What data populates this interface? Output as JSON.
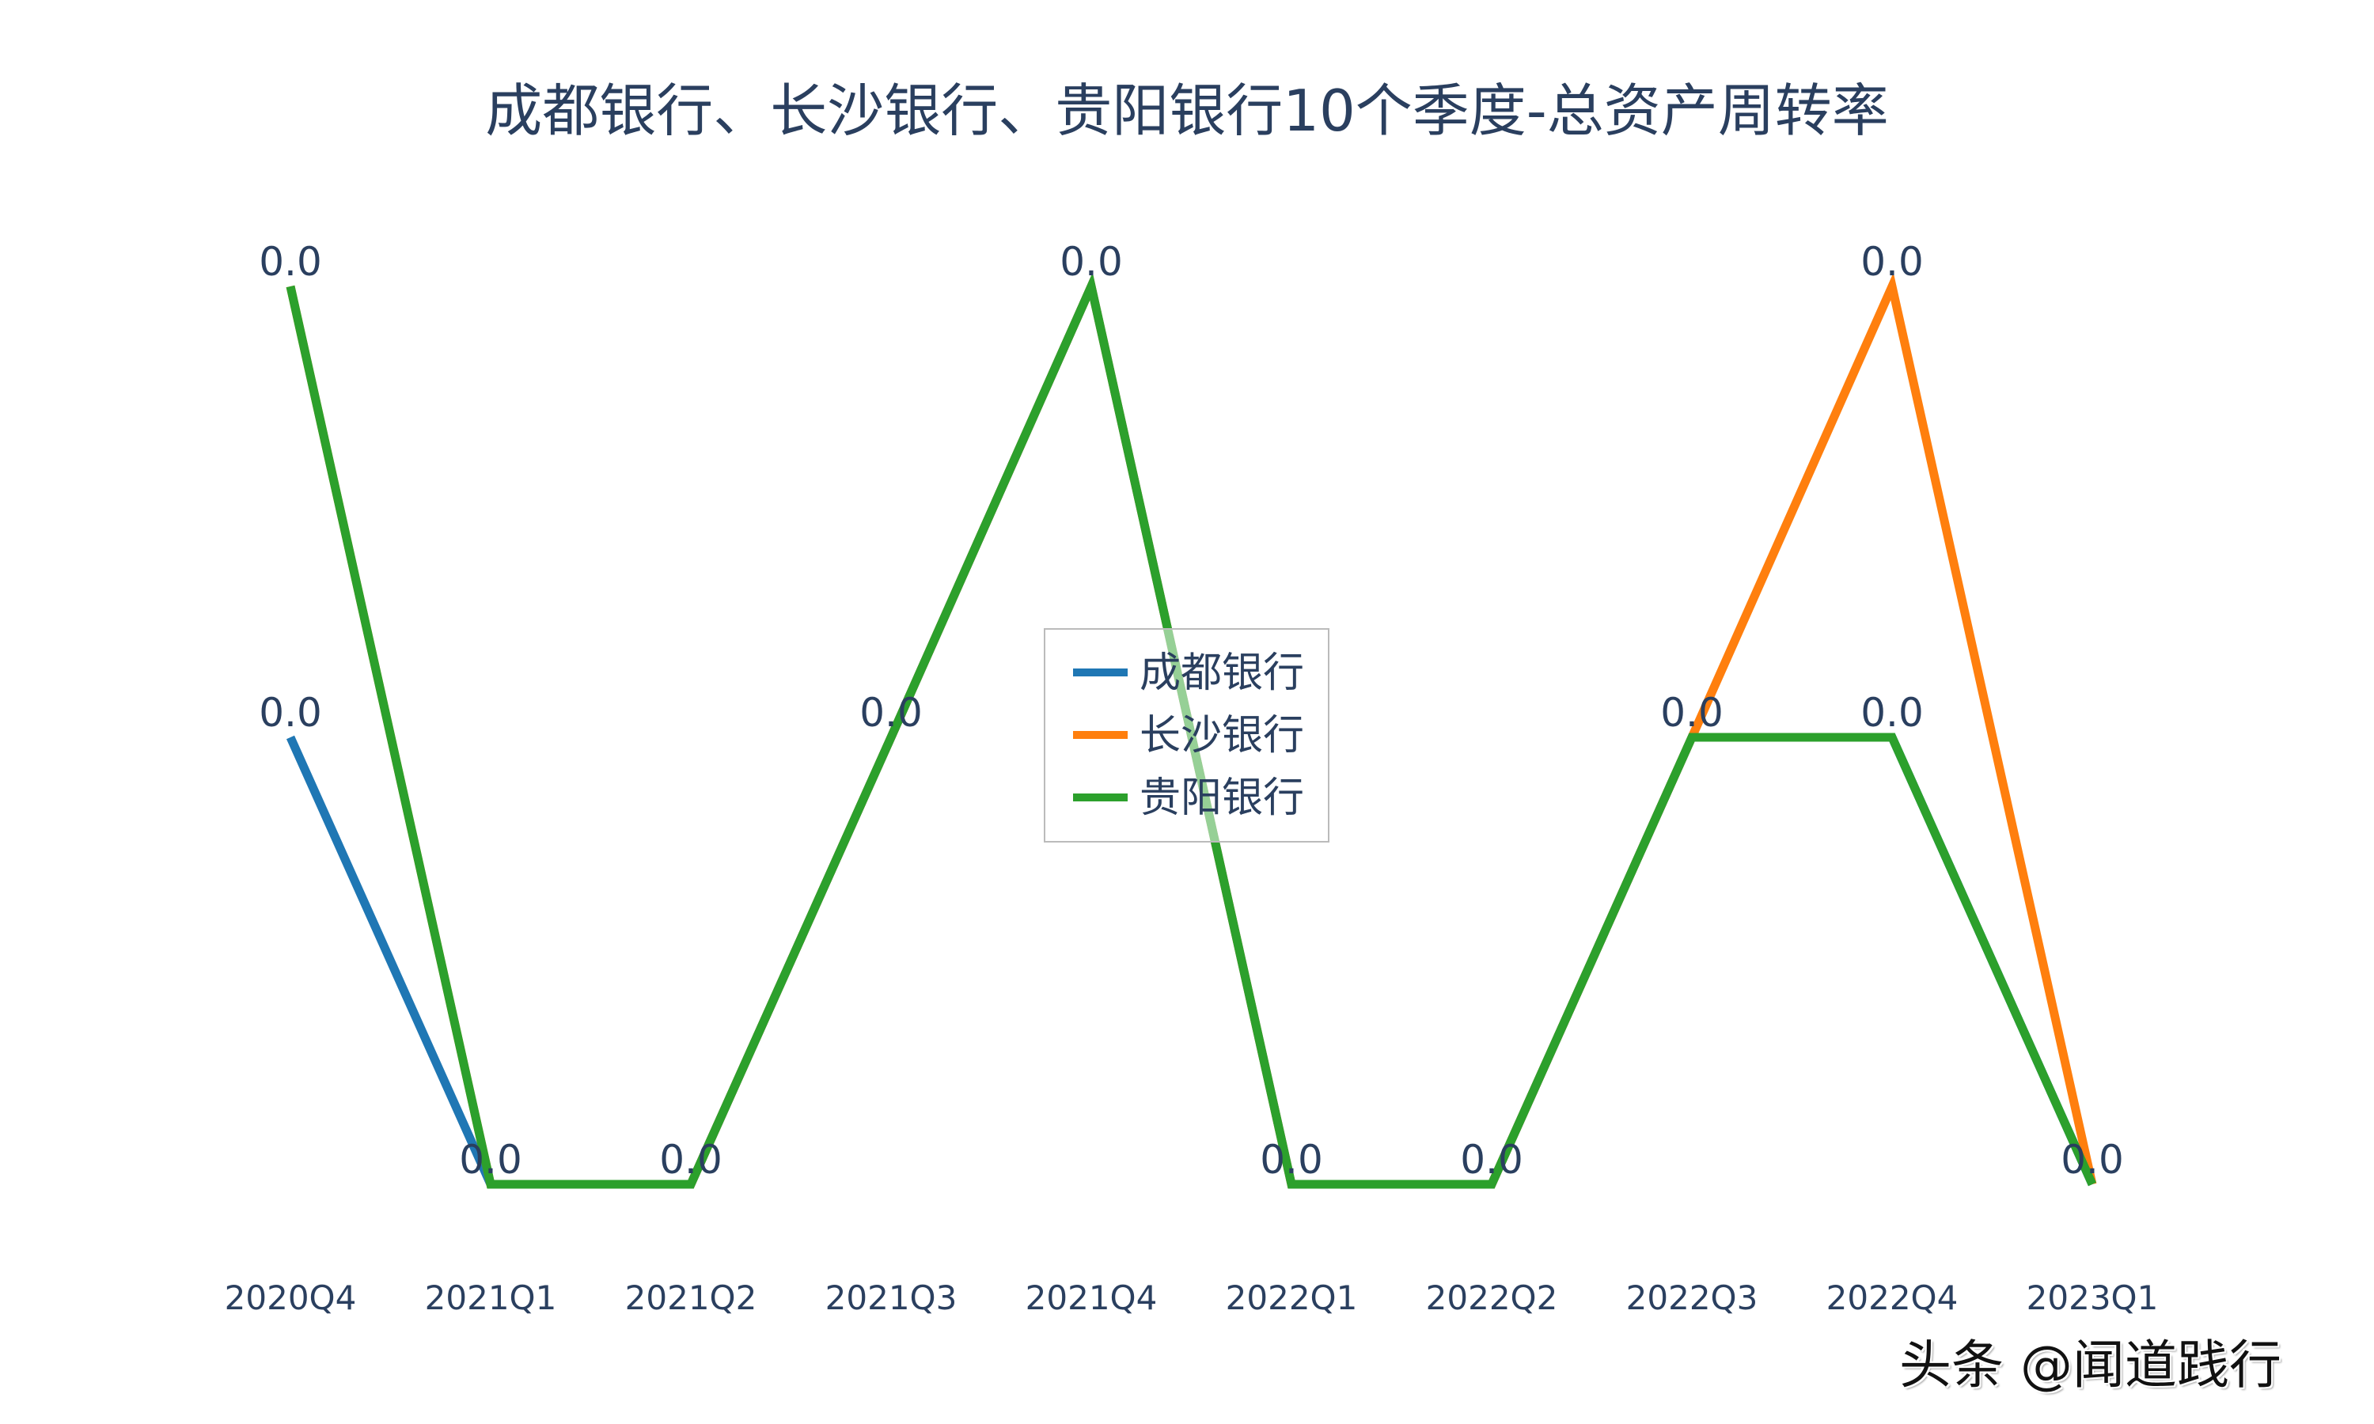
{
  "chart_data": {
    "type": "line",
    "title": "成都银行、长沙银行、贵阳银行10个季度-总资产周转率",
    "xlabel": "",
    "ylabel": "",
    "categories": [
      "2020Q4",
      "2021Q1",
      "2021Q2",
      "2021Q3",
      "2021Q4",
      "2022Q1",
      "2022Q2",
      "2022Q3",
      "2022Q4",
      "2023Q1"
    ],
    "value_note": "All data labels display 0.0 (values rounded to 1 decimal); three visual levels observed: low=0.0, mid≈0.0 (mid), high≈0.0 (high). Relative levels encoded as 0=low, 1=mid, 2=high.",
    "series": [
      {
        "name": "成都银行",
        "color": "#1f77b4",
        "levels": [
          1,
          0,
          0,
          1,
          2,
          0,
          0,
          1,
          1,
          0
        ],
        "labels": [
          "0.0",
          "0.0",
          "0.0",
          "0.0",
          "0.0",
          "0.0",
          "0.0",
          "0.0",
          "0.0",
          "0.0"
        ]
      },
      {
        "name": "长沙银行",
        "color": "#ff7f0e",
        "levels": [
          2,
          0,
          0,
          1,
          2,
          0,
          0,
          1,
          2,
          0
        ],
        "labels": [
          "0.0",
          "0.0",
          "0.0",
          "0.0",
          "0.0",
          "0.0",
          "0.0",
          "0.0",
          "0.0",
          "0.0"
        ]
      },
      {
        "name": "贵阳银行",
        "color": "#2ca02c",
        "levels": [
          2,
          0,
          0,
          1,
          2,
          0,
          0,
          1,
          1,
          0
        ],
        "labels": [
          "0.0",
          "0.0",
          "0.0",
          "0.0",
          "0.0",
          "0.0",
          "0.0",
          "0.0",
          "0.0",
          "0.0"
        ]
      }
    ],
    "legend_position": "center",
    "grid": false,
    "axes_visible": {
      "x_ticks": true,
      "y_ticks": false
    }
  },
  "layout": {
    "x_positions": [
      367,
      620,
      873,
      1126,
      1379,
      1632,
      1885,
      2138,
      2391,
      2644
    ],
    "level_y": [
      1497,
      932,
      362
    ]
  },
  "legend": {
    "items": [
      {
        "label": "成都银行",
        "color": "#1f77b4"
      },
      {
        "label": "长沙银行",
        "color": "#ff7f0e"
      },
      {
        "label": "贵阳银行",
        "color": "#2ca02c"
      }
    ]
  },
  "watermark": {
    "text": "头条 @闻道践行"
  },
  "colors": {
    "text": "#2a3f5f",
    "background": "#ffffff",
    "legend_border": "#bbbbbb"
  }
}
